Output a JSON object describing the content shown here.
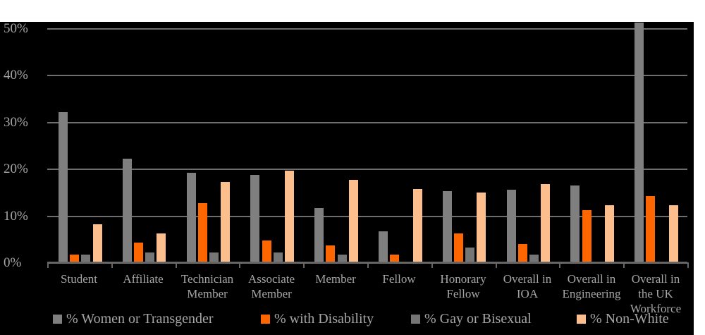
{
  "chart_data": {
    "type": "bar",
    "title": "",
    "xlabel": "",
    "ylabel": "",
    "ylim": [
      0,
      52
    ],
    "ytick_step": 10,
    "ytick_labels": [
      "0%",
      "10%",
      "20%",
      "30%",
      "40%",
      "50%"
    ],
    "grid": true,
    "legend_position": "bottom",
    "categories": [
      "Student",
      "Affiliate",
      "Technician Member",
      "Associate Member",
      "Member",
      "Fellow",
      "Honorary Fellow",
      "Overall in IOA",
      "Overall in Engineering",
      "Overall in the UK Workforce"
    ],
    "category_label_lines": [
      [
        "Student"
      ],
      [
        "Affiliate"
      ],
      [
        "Technician",
        "Member"
      ],
      [
        "Associate",
        "Member"
      ],
      [
        "Member"
      ],
      [
        "Fellow"
      ],
      [
        "Honorary",
        "Fellow"
      ],
      [
        "Overall in",
        "IOA"
      ],
      [
        "Overall in",
        "Engineering"
      ],
      [
        "Overall in",
        "the UK",
        "Workforce"
      ]
    ],
    "series": [
      {
        "name": "% Women or Transgender",
        "color": "#7F7F7F",
        "values": [
          32,
          22,
          19,
          18.5,
          11.5,
          6.5,
          15,
          15.3,
          16.3,
          51
        ]
      },
      {
        "name": "% with Disability",
        "color": "#FF6600",
        "values": [
          1.5,
          4,
          12.5,
          4.5,
          3.5,
          1.5,
          6,
          3.8,
          11,
          14
        ]
      },
      {
        "name": "% Gay or Bisexual",
        "color": "#757575",
        "values": [
          1.5,
          2,
          2,
          2,
          1.5,
          0,
          3,
          1.5,
          0,
          0
        ]
      },
      {
        "name": "% Non-White",
        "color": "#FBBE8C",
        "values": [
          8,
          6,
          17,
          19.5,
          17.5,
          15.5,
          14.8,
          16.5,
          12,
          12
        ]
      }
    ]
  },
  "colors": {
    "page_background": "#FFFFFF",
    "chart_background": "#000000",
    "gridline": "#6E6E6E",
    "axis_line": "#666666",
    "tick_label": "#A6A6A6",
    "legend_text": "#A6A6A6"
  }
}
